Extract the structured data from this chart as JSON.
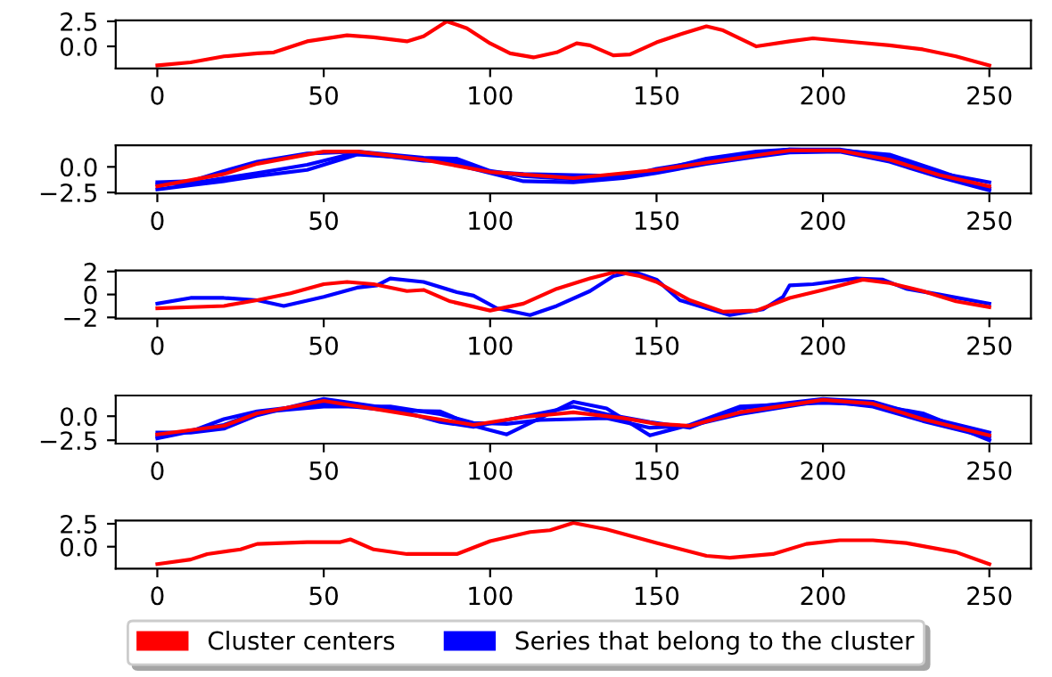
{
  "chart_data": [
    {
      "type": "line",
      "xlim": [
        -12.5,
        262.5
      ],
      "xticks": [
        0,
        50,
        100,
        150,
        200,
        250
      ],
      "ylim": [
        -2.2,
        2.6
      ],
      "yticks": [
        {
          "value": 0,
          "label": "0.0"
        },
        {
          "value": 2.5,
          "label": "2.5"
        }
      ],
      "series": [
        {
          "name": "Cluster centers",
          "color": "#ff0000",
          "x": [
            0,
            10,
            20,
            30,
            35,
            45,
            57,
            65,
            75,
            80,
            87,
            93,
            100,
            106,
            113,
            120,
            126,
            130,
            137,
            142,
            150,
            158,
            165,
            170,
            180,
            190,
            197,
            210,
            220,
            230,
            240,
            250
          ],
          "values": [
            -1.9,
            -1.6,
            -1.0,
            -0.7,
            -0.6,
            0.5,
            1.1,
            0.9,
            0.5,
            1.0,
            2.5,
            1.8,
            0.3,
            -0.7,
            -1.1,
            -0.6,
            0.3,
            0.1,
            -0.9,
            -0.8,
            0.4,
            1.3,
            2.0,
            1.6,
            0.0,
            0.5,
            0.8,
            0.4,
            0.1,
            -0.3,
            -1.0,
            -1.9
          ]
        }
      ]
    },
    {
      "type": "line",
      "xlim": [
        -12.5,
        262.5
      ],
      "xticks": [
        0,
        50,
        100,
        150,
        200,
        250
      ],
      "ylim": [
        -2.6,
        2.1
      ],
      "yticks": [
        {
          "value": -2.5,
          "label": "−2.5"
        },
        {
          "value": 0,
          "label": "0.0"
        }
      ],
      "series": [
        {
          "name": "Series that belong to the cluster",
          "color": "#0000ff",
          "x": [
            0,
            10,
            20,
            30,
            45,
            60,
            80,
            90,
            100,
            110,
            125,
            140,
            150,
            165,
            180,
            190,
            205,
            220,
            235,
            250
          ],
          "values": [
            -1.5,
            -1.4,
            -0.4,
            0.5,
            1.3,
            1.5,
            0.9,
            0.8,
            -0.4,
            -0.9,
            -1.2,
            -1.0,
            -0.2,
            0.6,
            1.3,
            1.7,
            1.7,
            1.0,
            -0.6,
            -1.5
          ]
        },
        {
          "color": "#0000ff",
          "x": [
            0,
            10,
            20,
            30,
            45,
            60,
            80,
            90,
            100,
            110,
            125,
            140,
            150,
            165,
            180,
            190,
            205,
            220,
            235,
            250
          ],
          "values": [
            -2.2,
            -1.8,
            -1.4,
            -0.9,
            -0.3,
            1.2,
            0.8,
            0.2,
            -0.6,
            -1.4,
            -1.5,
            -1.1,
            -0.6,
            0.3,
            1.0,
            1.4,
            1.5,
            0.5,
            -1.0,
            -2.3
          ]
        },
        {
          "color": "#0000ff",
          "x": [
            0,
            10,
            20,
            30,
            45,
            60,
            80,
            90,
            100,
            110,
            125,
            140,
            150,
            165,
            180,
            190,
            205,
            220,
            235,
            250
          ],
          "values": [
            -1.7,
            -1.6,
            -1.1,
            -0.6,
            0.2,
            1.4,
            0.6,
            0.5,
            -0.5,
            -0.7,
            -0.8,
            -0.9,
            -0.4,
            0.8,
            1.5,
            1.7,
            1.6,
            1.2,
            -0.4,
            -2.1
          ]
        },
        {
          "name": "Cluster centers",
          "color": "#ff0000",
          "x": [
            0,
            20,
            30,
            50,
            60,
            80,
            100,
            125,
            150,
            175,
            190,
            205,
            220,
            235,
            250
          ],
          "values": [
            -1.9,
            -0.7,
            0.3,
            1.5,
            1.5,
            0.7,
            -0.5,
            -1.1,
            -0.3,
            0.9,
            1.6,
            1.6,
            0.7,
            -0.8,
            -1.9
          ]
        }
      ]
    },
    {
      "type": "line",
      "xlim": [
        -12.5,
        262.5
      ],
      "xticks": [
        0,
        50,
        100,
        150,
        200,
        250
      ],
      "ylim": [
        -2.1,
        2.1
      ],
      "yticks": [
        {
          "value": -2,
          "label": "−2"
        },
        0,
        2
      ],
      "series": [
        {
          "name": "Series that belong to the cluster",
          "color": "#0000ff",
          "x": [
            0,
            10,
            20,
            30,
            38,
            50,
            60,
            66,
            70,
            80,
            90,
            95,
            102,
            112,
            120,
            130,
            137,
            143,
            150,
            157,
            165,
            172,
            182,
            188,
            190,
            197,
            210,
            218,
            225,
            235,
            250
          ],
          "values": [
            -0.8,
            -0.3,
            -0.3,
            -0.5,
            -1.0,
            -0.2,
            0.6,
            0.8,
            1.4,
            1.1,
            0.2,
            -0.1,
            -1.2,
            -1.8,
            -1.0,
            0.3,
            1.6,
            2.0,
            1.3,
            -0.5,
            -1.2,
            -1.8,
            -1.3,
            -0.2,
            0.8,
            0.9,
            1.4,
            1.3,
            0.5,
            0.0,
            -0.8
          ]
        },
        {
          "name": "Cluster centers",
          "color": "#ff0000",
          "x": [
            0,
            20,
            30,
            40,
            50,
            57,
            65,
            75,
            80,
            88,
            100,
            110,
            120,
            130,
            138,
            145,
            150,
            160,
            170,
            180,
            190,
            200,
            212,
            220,
            230,
            240,
            250
          ],
          "values": [
            -1.2,
            -1.0,
            -0.5,
            0.1,
            0.9,
            1.1,
            0.9,
            0.3,
            0.4,
            -0.6,
            -1.4,
            -0.8,
            0.5,
            1.4,
            2.0,
            1.6,
            1.1,
            -0.5,
            -1.5,
            -1.4,
            -0.3,
            0.4,
            1.3,
            1.0,
            0.3,
            -0.6,
            -1.1
          ]
        }
      ]
    },
    {
      "type": "line",
      "xlim": [
        -12.5,
        262.5
      ],
      "xticks": [
        0,
        50,
        100,
        150,
        200,
        250
      ],
      "ylim": [
        -2.85,
        2.15
      ],
      "yticks": [
        {
          "value": -2.5,
          "label": "−2.5"
        },
        {
          "value": 0,
          "label": "0.0"
        }
      ],
      "series": [
        {
          "name": "Series that belong to the cluster",
          "color": "#0000ff",
          "x": [
            0,
            10,
            20,
            30,
            50,
            70,
            85,
            95,
            105,
            115,
            125,
            135,
            148,
            160,
            175,
            200,
            215,
            230,
            250
          ],
          "values": [
            -2.3,
            -1.6,
            -0.3,
            0.5,
            1.3,
            0.6,
            0.5,
            -1.0,
            -1.9,
            -0.2,
            1.5,
            0.8,
            -2.0,
            -0.9,
            1.0,
            1.4,
            1.2,
            0.3,
            -2.5
          ]
        },
        {
          "color": "#0000ff",
          "x": [
            0,
            10,
            20,
            30,
            50,
            70,
            85,
            95,
            105,
            115,
            125,
            135,
            148,
            160,
            175,
            200,
            215,
            230,
            250
          ],
          "values": [
            -1.7,
            -1.7,
            -1.3,
            0.1,
            1.8,
            0.8,
            -0.6,
            -1.1,
            -0.4,
            0.3,
            1.0,
            0.2,
            -0.6,
            -1.2,
            0.8,
            1.8,
            1.5,
            0.0,
            -1.7
          ]
        },
        {
          "color": "#0000ff",
          "x": [
            0,
            10,
            20,
            30,
            50,
            70,
            85,
            95,
            105,
            115,
            125,
            135,
            148,
            160,
            175,
            200,
            215,
            230,
            250
          ],
          "values": [
            -2.1,
            -1.5,
            -0.9,
            0.4,
            1.0,
            1.0,
            0.2,
            -0.7,
            -0.8,
            -0.4,
            -0.3,
            -0.2,
            -1.2,
            -1.0,
            0.2,
            1.6,
            1.0,
            -0.5,
            -2.2
          ]
        },
        {
          "name": "Cluster centers",
          "color": "#ff0000",
          "x": [
            0,
            20,
            30,
            50,
            70,
            95,
            110,
            125,
            140,
            150,
            160,
            175,
            200,
            215,
            230,
            250
          ],
          "values": [
            -1.9,
            -1.0,
            0.3,
            1.6,
            0.5,
            -0.9,
            -0.1,
            0.4,
            -0.2,
            -0.8,
            -1.0,
            0.4,
            1.7,
            1.3,
            -0.3,
            -2.0
          ]
        }
      ]
    },
    {
      "type": "line",
      "xlim": [
        -12.5,
        262.5
      ],
      "xticks": [
        0,
        50,
        100,
        150,
        200,
        250
      ],
      "ylim": [
        -2.4,
        2.85
      ],
      "yticks": [
        {
          "value": 0,
          "label": "0.0"
        },
        {
          "value": 2.5,
          "label": "2.5"
        }
      ],
      "legend": "bottom",
      "series": [
        {
          "name": "Cluster centers",
          "color": "#ff0000",
          "x": [
            0,
            10,
            15,
            25,
            30,
            45,
            55,
            58,
            65,
            75,
            90,
            100,
            112,
            118,
            125,
            135,
            150,
            165,
            172,
            185,
            195,
            205,
            215,
            225,
            240,
            250
          ],
          "values": [
            -1.9,
            -1.4,
            -0.8,
            -0.3,
            0.3,
            0.5,
            0.5,
            0.8,
            -0.3,
            -0.8,
            -0.8,
            0.6,
            1.6,
            1.8,
            2.6,
            1.9,
            0.4,
            -1.0,
            -1.2,
            -0.8,
            0.3,
            0.7,
            0.7,
            0.4,
            -0.6,
            -1.9
          ]
        }
      ]
    }
  ]
}
